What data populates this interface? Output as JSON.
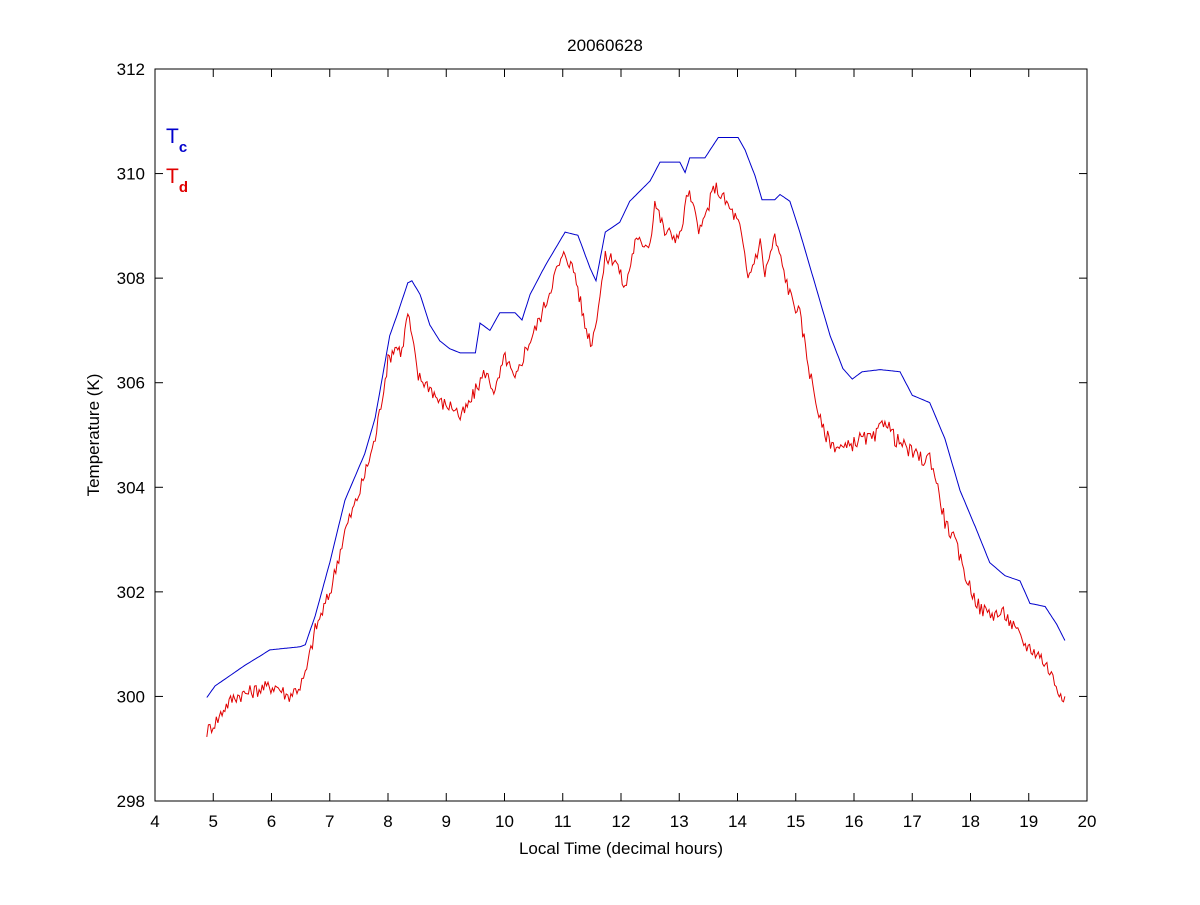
{
  "chart_data": {
    "type": "line",
    "title": "20060628",
    "xlabel": "Local Time (decimal hours)",
    "ylabel": "Temperature (K)",
    "xlim": [
      4,
      20
    ],
    "ylim": [
      298,
      312
    ],
    "xticks": [
      4,
      5,
      6,
      7,
      8,
      9,
      10,
      11,
      12,
      13,
      14,
      15,
      16,
      17,
      18,
      19,
      20
    ],
    "yticks": [
      298,
      300,
      302,
      304,
      306,
      308,
      310,
      312
    ],
    "grid": false,
    "legend_placement": "top-left",
    "series": [
      {
        "name": "Tc",
        "label_main": "T",
        "label_sub": "c",
        "color": "#0000cc",
        "x": [
          4.89,
          5.03,
          5.29,
          5.55,
          5.8,
          5.97,
          6.49,
          6.58,
          6.75,
          7.0,
          7.26,
          7.6,
          7.78,
          8.03,
          8.17,
          8.34,
          8.41,
          8.55,
          8.72,
          8.89,
          9.06,
          9.24,
          9.5,
          9.58,
          9.75,
          9.92,
          10.18,
          10.3,
          10.44,
          10.7,
          11.04,
          11.26,
          11.47,
          11.57,
          11.73,
          11.98,
          12.15,
          12.5,
          12.67,
          13.01,
          13.1,
          13.18,
          13.44,
          13.67,
          14.01,
          14.13,
          14.3,
          14.42,
          14.64,
          14.73,
          14.9,
          15.07,
          15.33,
          15.59,
          15.81,
          15.97,
          16.14,
          16.45,
          16.79,
          17.0,
          17.3,
          17.56,
          17.82,
          18.08,
          18.33,
          18.59,
          18.85,
          19.02,
          19.28,
          19.48,
          19.62
        ],
        "y": [
          299.98,
          300.2,
          300.4,
          300.6,
          300.77,
          300.89,
          300.95,
          300.99,
          301.54,
          302.56,
          303.75,
          304.64,
          305.33,
          306.9,
          307.34,
          307.91,
          307.95,
          307.69,
          307.1,
          306.8,
          306.65,
          306.57,
          306.57,
          307.14,
          307.0,
          307.34,
          307.34,
          307.2,
          307.69,
          308.24,
          308.88,
          308.82,
          308.19,
          307.95,
          308.88,
          309.07,
          309.47,
          309.86,
          310.22,
          310.22,
          310.02,
          310.3,
          310.3,
          310.69,
          310.69,
          310.45,
          309.96,
          309.5,
          309.5,
          309.6,
          309.47,
          308.88,
          307.89,
          306.9,
          306.27,
          306.07,
          306.21,
          306.25,
          306.21,
          305.76,
          305.62,
          304.93,
          303.94,
          303.25,
          302.56,
          302.31,
          302.21,
          301.78,
          301.72,
          301.38,
          301.07
        ]
      },
      {
        "name": "Td",
        "label_main": "T",
        "label_sub": "d",
        "color": "#e00000",
        "x": [
          4.89,
          5.08,
          5.2,
          5.37,
          5.63,
          5.84,
          6.09,
          6.28,
          6.49,
          6.58,
          6.75,
          7.0,
          7.26,
          7.52,
          7.78,
          8.0,
          8.12,
          8.24,
          8.34,
          8.52,
          8.72,
          8.89,
          9.15,
          9.24,
          9.41,
          9.53,
          9.67,
          9.84,
          10.01,
          10.18,
          10.35,
          10.52,
          10.7,
          10.87,
          11.04,
          11.21,
          11.38,
          11.5,
          11.64,
          11.73,
          11.9,
          12.07,
          12.24,
          12.5,
          12.58,
          12.75,
          13.01,
          13.15,
          13.36,
          13.61,
          13.79,
          13.96,
          14.04,
          14.18,
          14.39,
          14.47,
          14.64,
          14.9,
          15.07,
          15.24,
          15.45,
          15.62,
          15.85,
          16.1,
          16.36,
          16.53,
          16.7,
          16.96,
          17.22,
          17.3,
          17.39,
          17.56,
          17.73,
          17.96,
          18.16,
          18.37,
          18.59,
          18.76,
          18.94,
          19.19,
          19.36,
          19.5,
          19.62
        ],
        "y": [
          299.33,
          299.57,
          299.8,
          300.0,
          300.08,
          300.16,
          300.2,
          300.0,
          300.2,
          300.4,
          301.28,
          301.97,
          303.16,
          303.94,
          304.93,
          306.41,
          306.7,
          306.6,
          307.34,
          306.11,
          305.92,
          305.62,
          305.52,
          305.33,
          305.62,
          305.92,
          306.21,
          305.82,
          306.51,
          306.02,
          306.6,
          307.0,
          307.5,
          308.09,
          308.48,
          308.09,
          307.1,
          306.75,
          307.69,
          308.38,
          308.38,
          307.79,
          308.68,
          308.68,
          309.47,
          308.88,
          308.78,
          309.66,
          308.88,
          309.76,
          309.47,
          309.17,
          308.97,
          307.99,
          308.68,
          308.09,
          308.78,
          307.69,
          307.3,
          306.21,
          305.13,
          304.83,
          304.73,
          304.93,
          304.93,
          305.33,
          304.93,
          304.69,
          304.5,
          304.6,
          304.24,
          303.35,
          302.96,
          302.17,
          301.68,
          301.58,
          301.58,
          301.28,
          300.99,
          300.79,
          300.49,
          300.14,
          300.0
        ]
      }
    ]
  }
}
